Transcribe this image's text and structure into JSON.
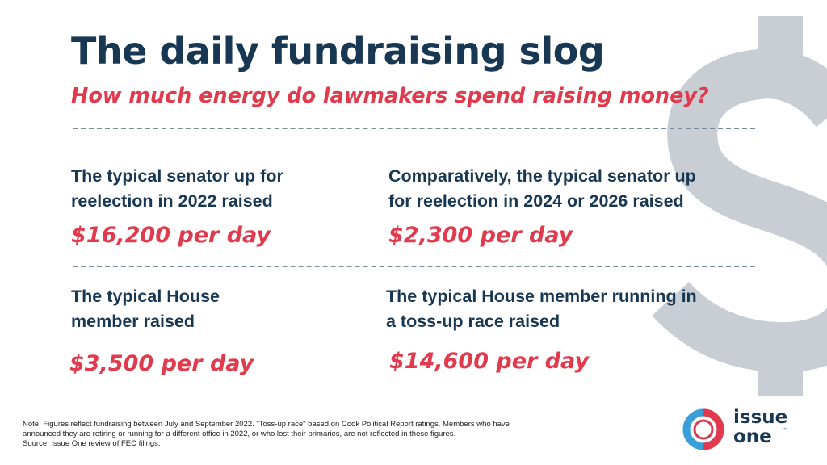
{
  "title": "The daily fundraising slog",
  "subtitle": "How much energy do lawmakers spend raising money?",
  "stats": [
    {
      "line1": "The typical senator up for",
      "line2": "reelection in 2022 raised",
      "value": "$16,200 per day"
    },
    {
      "line1": "Comparatively, the typical senator up",
      "line2": "for reelection in 2024 or 2026 raised",
      "value": "$2,300 per day"
    },
    {
      "line1": "The typical House",
      "line2": "member raised",
      "value": "$3,500 per day"
    },
    {
      "line1": "The typical House member running in",
      "line2": "a toss-up race raised",
      "value": "$14,600 per day"
    }
  ],
  "footnote": {
    "line1": "Note: Figures reflect fundraising between July and September 2022. \"Toss-up race\" based on Cook Political Report ratings. Members who have",
    "line2": "announced they are retiring or running for a different office in 2022, or who lost their primaries, are not reflected in these figures.",
    "line3": "Source: Issue One review of FEC filings."
  },
  "logo": {
    "line1": "issue",
    "line2": "one",
    "tm": "™"
  },
  "background_glyph": "dollar-sign-icon",
  "colors": {
    "navy": "#173753",
    "red": "#e03a4c",
    "light_blue": "#3a9fd8",
    "watermark_gray": "#c8ced3"
  }
}
